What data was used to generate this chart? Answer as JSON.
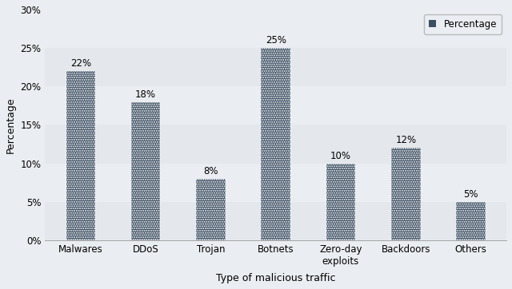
{
  "categories": [
    "Malwares",
    "DDoS",
    "Trojan",
    "Botnets",
    "Zero-day\nexploits",
    "Backdoors",
    "Others"
  ],
  "values": [
    22,
    18,
    8,
    25,
    10,
    12,
    5
  ],
  "labels": [
    "22%",
    "18%",
    "8%",
    "25%",
    "10%",
    "12%",
    "5%"
  ],
  "bar_color": "#3d4f63",
  "background_color": "#eaedf1",
  "plot_bg_color": "#eaedf1",
  "ylabel": "Percentage",
  "xlabel": "Type of malicious traffic",
  "ylim": [
    0,
    30
  ],
  "yticks": [
    0,
    5,
    10,
    15,
    20,
    25,
    30
  ],
  "ytick_labels": [
    "0%",
    "5%",
    "10%",
    "15%",
    "20%",
    "25%",
    "30%"
  ],
  "legend_label": "Percentage",
  "label_fontsize": 9,
  "tick_fontsize": 8.5,
  "bar_width": 0.45,
  "hatch": "......"
}
